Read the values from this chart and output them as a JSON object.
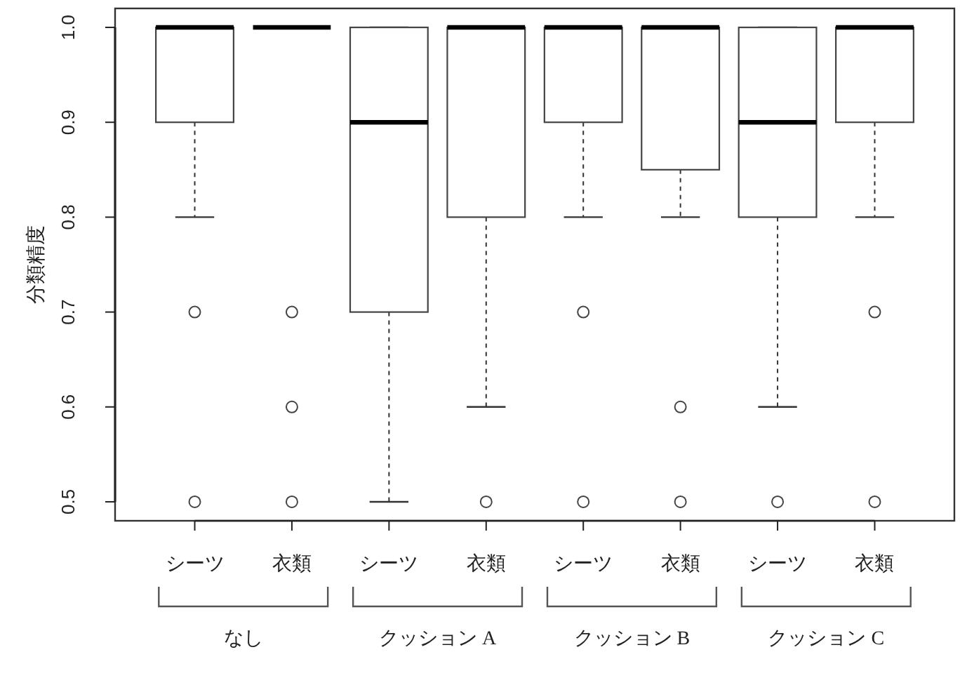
{
  "chart_data": {
    "type": "box",
    "ylabel": "分類精度",
    "categories": [
      "シーツ",
      "衣類",
      "シーツ",
      "衣類",
      "シーツ",
      "衣類",
      "シーツ",
      "衣類"
    ],
    "annotations": [
      "なし",
      "クッション A",
      "クッション B",
      "クッション C"
    ],
    "ylim": [
      0.48,
      1.02
    ],
    "yticks": [
      0.5,
      0.6,
      0.7,
      0.8,
      0.9,
      {
        "value": 1.0,
        "label": "1.0"
      }
    ],
    "boxes": [
      {
        "low": 0.8,
        "q1": 0.9,
        "median": 1.0,
        "q3": 1.0,
        "high": 1.0,
        "outliers": [
          0.7,
          0.5
        ]
      },
      {
        "low": 1.0,
        "q1": 1.0,
        "median": 1.0,
        "q3": 1.0,
        "high": 1.0,
        "outliers": [
          0.7,
          0.6,
          0.5
        ]
      },
      {
        "low": 0.5,
        "q1": 0.7,
        "median": 0.9,
        "q3": 1.0,
        "high": 1.0
      },
      {
        "low": 0.6,
        "q1": 0.8,
        "median": 1.0,
        "q3": 1.0,
        "high": 1.0,
        "outliers": [
          0.5
        ]
      },
      {
        "low": 0.8,
        "q1": 0.9,
        "median": 1.0,
        "q3": 1.0,
        "high": 1.0,
        "outliers": [
          0.7,
          0.5
        ]
      },
      {
        "low": 0.8,
        "q1": 0.85,
        "median": 1.0,
        "q3": 1.0,
        "high": 1.0,
        "outliers": [
          0.6,
          0.5
        ]
      },
      {
        "low": 0.6,
        "q1": 0.8,
        "median": 0.9,
        "q3": 1.0,
        "high": 1.0,
        "outliers": [
          0.5
        ]
      },
      {
        "low": 0.8,
        "q1": 0.9,
        "median": 1.0,
        "q3": 1.0,
        "high": 1.0,
        "outliers": [
          0.7,
          0.5
        ]
      }
    ]
  }
}
